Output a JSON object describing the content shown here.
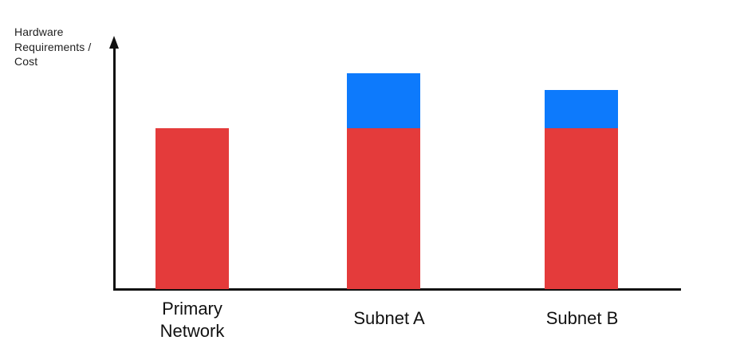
{
  "chart_data": {
    "type": "bar",
    "stacked": true,
    "title": "",
    "ylabel": "Hardware Requirements / Cost",
    "xlabel": "",
    "categories": [
      "Primary Network",
      "Subnet A",
      "Subnet B"
    ],
    "series": [
      {
        "name": "red-segment-base-requirement",
        "color": "#E43B3B",
        "values": [
          100,
          100,
          100
        ]
      },
      {
        "name": "blue-segment-additional-overhead",
        "color": "#0D7AFC",
        "values": [
          0,
          34,
          24
        ]
      }
    ],
    "value_axis": {
      "ticks_visible": false,
      "range_relative": [
        0,
        150
      ]
    },
    "gridlines": false,
    "legend_position": "none",
    "axis_color": "#111111",
    "y_axis_arrow": true
  }
}
